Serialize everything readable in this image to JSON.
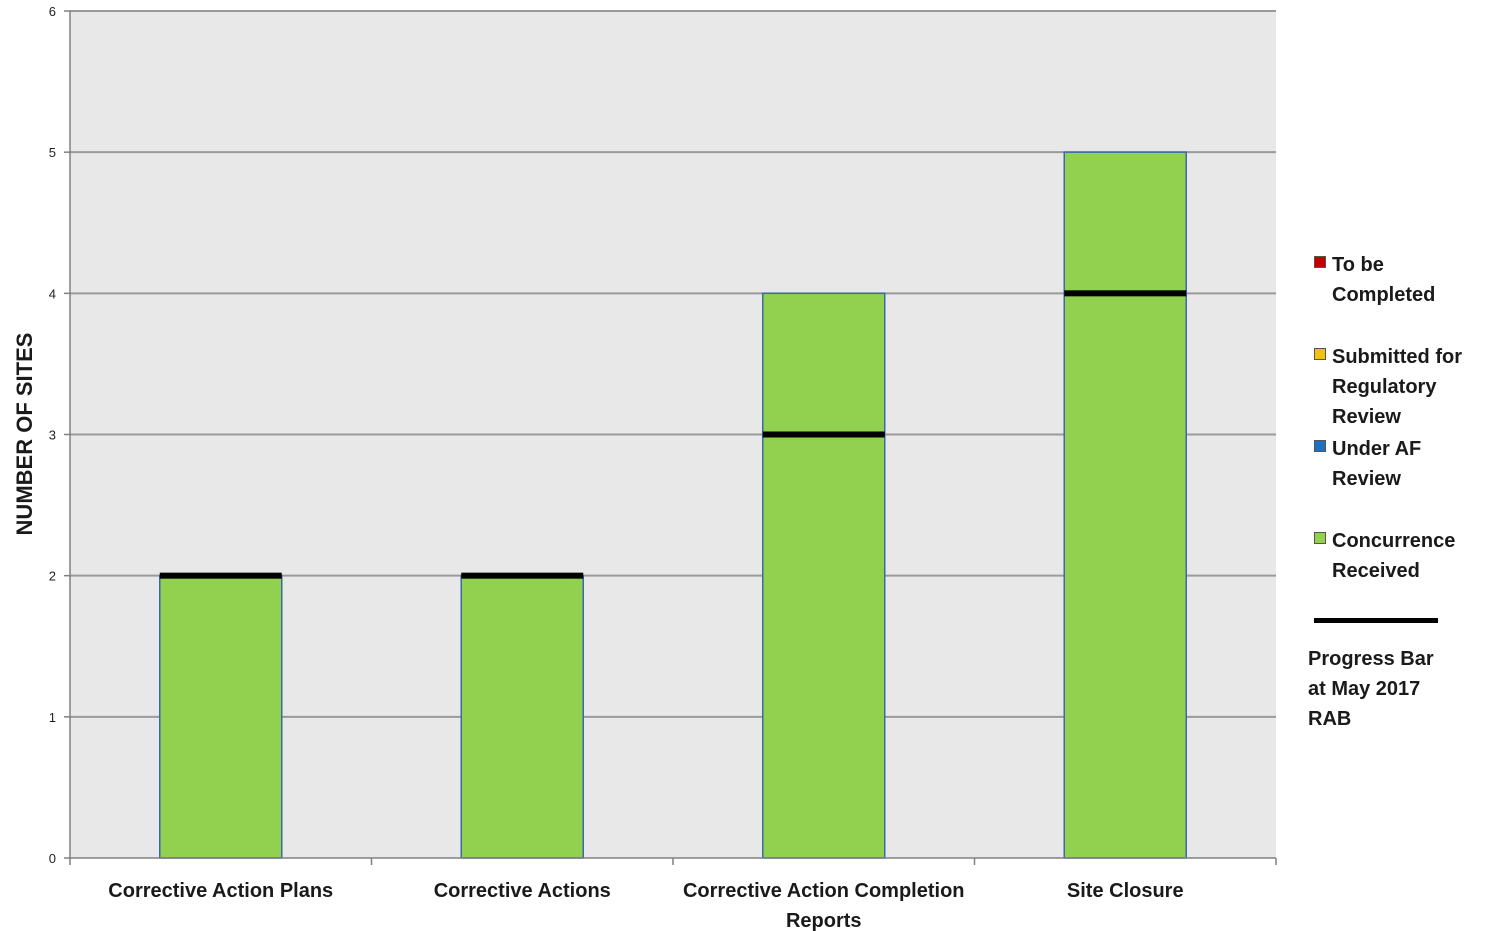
{
  "chart_data": {
    "type": "bar",
    "stacked": true,
    "categories": [
      "Corrective Action Plans",
      "Corrective Actions",
      "Corrective Action Completion Reports",
      "Site Closure"
    ],
    "category_label_lines": [
      [
        "Corrective Action Plans"
      ],
      [
        "Corrective Actions"
      ],
      [
        "Corrective Action Completion",
        "Reports"
      ],
      [
        "Site Closure"
      ]
    ],
    "series": [
      {
        "name": "To be Completed",
        "color": "#c00000",
        "values": [
          0,
          0,
          0,
          0
        ]
      },
      {
        "name": "Submitted for Regulatory Review",
        "color": "#f4c20d",
        "values": [
          0,
          0,
          0,
          0
        ]
      },
      {
        "name": "Under AF Review",
        "color": "#1f6fc5",
        "values": [
          0,
          0,
          0,
          0
        ]
      },
      {
        "name": "Concurrence Received",
        "color": "#92d050",
        "values": [
          2,
          2,
          4,
          5
        ]
      }
    ],
    "progress_bar": {
      "name": "Progress Bar at May 2017 RAB",
      "values": [
        2,
        2,
        3,
        4
      ]
    },
    "ylabel": "NUMBER OF SITES",
    "xlabel": "",
    "ylim": [
      0,
      6
    ],
    "yticks": [
      0,
      1,
      2,
      3,
      4,
      5,
      6
    ],
    "grid": true,
    "legend_position": "right",
    "plot_background": "#e8e8e8",
    "gridline_color": "#9a9a9a",
    "bar_border_color": "#3a6aa8"
  },
  "legend": {
    "items": [
      {
        "label_lines": [
          "To be",
          "Completed"
        ],
        "color": "#c00000"
      },
      {
        "label_lines": [
          "Submitted for",
          "Regulatory",
          "Review"
        ],
        "color": "#f4c20d"
      },
      {
        "label_lines": [
          "Under AF",
          "Review"
        ],
        "color": "#1f6fc5"
      },
      {
        "label_lines": [
          "Concurrence",
          "Received"
        ],
        "color": "#92d050"
      }
    ],
    "progress_label_lines": [
      "Progress Bar",
      "at May 2017",
      "RAB"
    ]
  }
}
